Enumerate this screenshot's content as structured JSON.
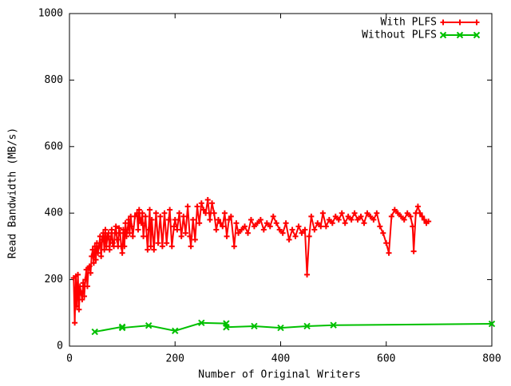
{
  "chart_data": {
    "type": "line",
    "xlabel": "Number of Original Writers",
    "ylabel": "Read Bandwidth (MB/s)",
    "xlim": [
      0,
      800
    ],
    "xticks": [
      0,
      200,
      400,
      600,
      800
    ],
    "ylim": [
      0,
      1000
    ],
    "yticks": [
      0,
      200,
      400,
      600,
      800,
      1000
    ],
    "legend": "top-right",
    "series": [
      {
        "name": "With PLFS",
        "color": "#ff0000",
        "marker": "plus",
        "x": [
          8,
          10,
          12,
          14,
          16,
          18,
          20,
          22,
          24,
          26,
          28,
          30,
          32,
          34,
          36,
          38,
          40,
          42,
          44,
          46,
          48,
          50,
          52,
          54,
          56,
          58,
          60,
          62,
          64,
          66,
          68,
          70,
          72,
          74,
          76,
          78,
          80,
          82,
          84,
          86,
          88,
          90,
          92,
          94,
          96,
          98,
          100,
          102,
          104,
          106,
          108,
          110,
          112,
          114,
          116,
          118,
          120,
          124,
          128,
          130,
          132,
          134,
          136,
          138,
          140,
          144,
          148,
          150,
          152,
          154,
          156,
          160,
          164,
          168,
          172,
          176,
          180,
          184,
          188,
          190,
          194,
          198,
          200,
          204,
          208,
          212,
          216,
          220,
          224,
          228,
          230,
          234,
          238,
          242,
          246,
          250,
          254,
          258,
          262,
          266,
          270,
          274,
          278,
          282,
          286,
          290,
          294,
          298,
          302,
          306,
          312,
          316,
          320,
          326,
          332,
          338,
          344,
          350,
          356,
          362,
          368,
          374,
          380,
          386,
          392,
          398,
          404,
          410,
          416,
          422,
          428,
          434,
          440,
          446,
          450,
          454,
          458,
          464,
          470,
          476,
          480,
          486,
          492,
          498,
          504,
          510,
          516,
          522,
          528,
          534,
          540,
          546,
          552,
          558,
          564,
          570,
          576,
          582,
          588,
          594,
          600,
          605,
          610,
          616,
          622,
          628,
          634,
          640,
          646,
          650,
          652,
          656,
          660,
          664,
          668,
          672,
          676,
          680
        ],
        "values": [
          205,
          70,
          210,
          120,
          215,
          110,
          180,
          160,
          140,
          190,
          150,
          200,
          230,
          180,
          235,
          240,
          220,
          270,
          290,
          250,
          300,
          260,
          310,
          280,
          300,
          330,
          270,
          320,
          340,
          290,
          350,
          300,
          330,
          340,
          290,
          320,
          350,
          310,
          300,
          340,
          360,
          320,
          300,
          355,
          340,
          300,
          280,
          350,
          300,
          370,
          330,
          350,
          380,
          340,
          390,
          360,
          330,
          390,
          400,
          350,
          410,
          380,
          370,
          400,
          330,
          390,
          290,
          350,
          410,
          300,
          380,
          290,
          400,
          310,
          390,
          300,
          400,
          310,
          380,
          410,
          300,
          360,
          380,
          350,
          400,
          330,
          390,
          340,
          420,
          330,
          300,
          380,
          320,
          420,
          370,
          430,
          410,
          400,
          440,
          380,
          430,
          400,
          350,
          380,
          370,
          360,
          400,
          330,
          380,
          390,
          300,
          370,
          340,
          350,
          360,
          340,
          380,
          360,
          370,
          380,
          350,
          370,
          360,
          390,
          370,
          350,
          340,
          370,
          320,
          350,
          330,
          360,
          340,
          350,
          215,
          330,
          390,
          350,
          370,
          360,
          400,
          360,
          380,
          370,
          390,
          380,
          400,
          370,
          390,
          380,
          400,
          380,
          390,
          370,
          400,
          390,
          380,
          400,
          360,
          340,
          310,
          280,
          390,
          410,
          400,
          390,
          380,
          400,
          390,
          360,
          285,
          400,
          420,
          400,
          390,
          380,
          370,
          375
        ]
      },
      {
        "name": "Without PLFS",
        "color": "#00c000",
        "marker": "cross",
        "x": [
          48,
          100,
          100,
          150,
          200,
          250,
          297,
          297,
          350,
          400,
          450,
          500,
          800
        ],
        "values": [
          43,
          58,
          55,
          62,
          46,
          70,
          68,
          57,
          60,
          55,
          60,
          63,
          67
        ]
      }
    ]
  }
}
